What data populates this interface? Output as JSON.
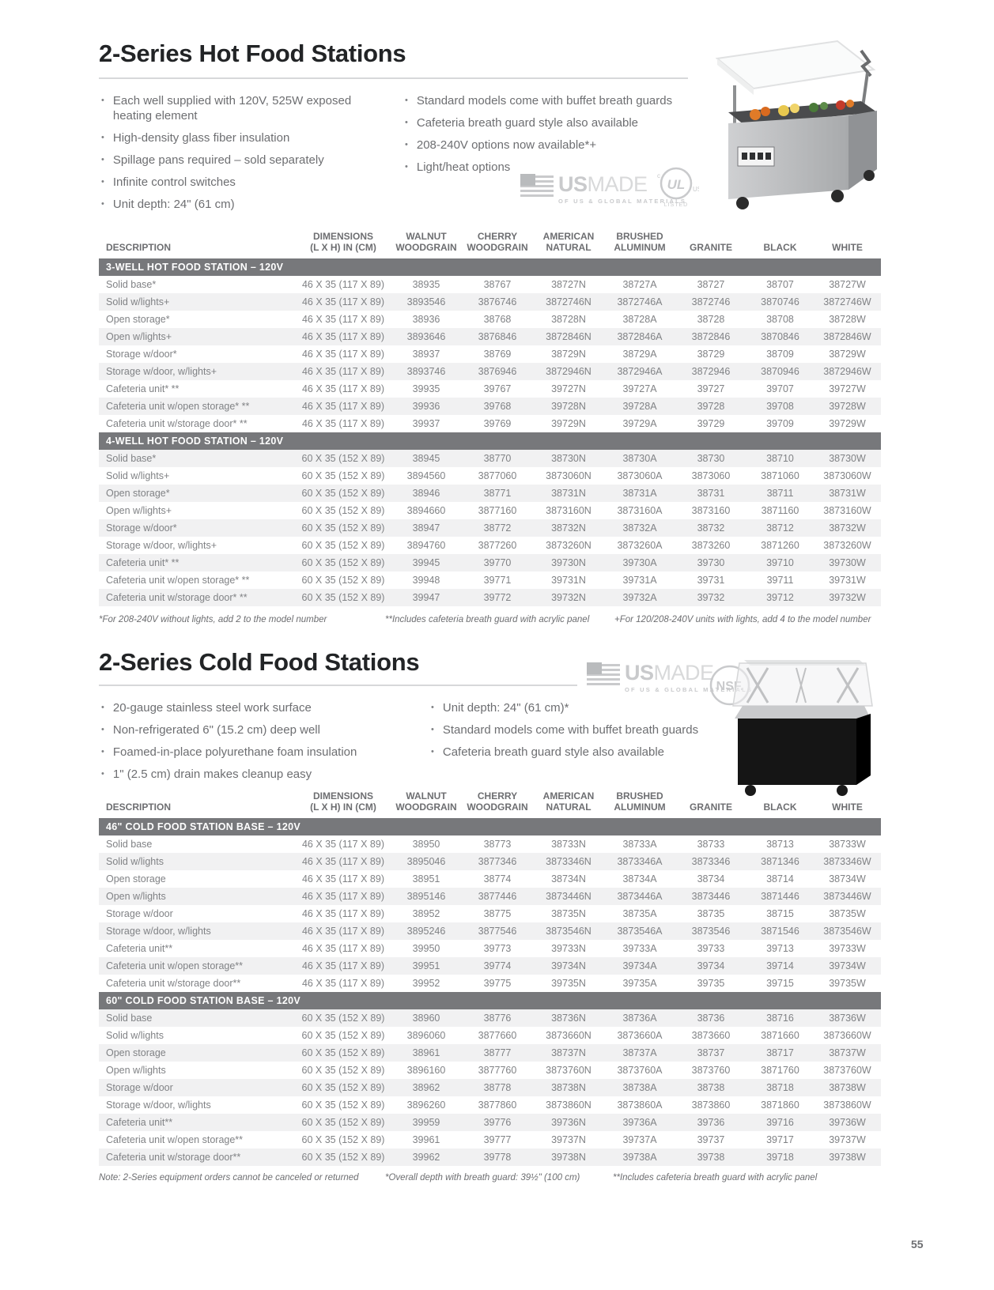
{
  "page_number": "55",
  "bullet_char": "•",
  "badges": {
    "usmade_bold": "US",
    "usmade_light": "MADE",
    "usmade_sub": "OF US & GLOBAL MATERIALS",
    "ul_main": "UL",
    "ul_c": "c",
    "ul_us": "US",
    "ul_listed": "LISTED",
    "nsf": "NSF."
  },
  "hot": {
    "title": "2-Series  Hot Food Stations",
    "bullets_left": [
      "Each well supplied with 120V, 525W exposed heating element",
      "High-density glass fiber insulation",
      "Spillage pans required – sold separately",
      "Infinite control switches",
      "Unit depth: 24\" (61 cm)"
    ],
    "bullets_right": [
      "Standard models come with buffet breath guards",
      "Cafeteria breath guard style also available",
      "208-240V options now available*+",
      "Light/heat options"
    ],
    "table": {
      "headers": [
        [
          "",
          "DESCRIPTION"
        ],
        [
          "DIMENSIONS",
          "(L X H) IN (CM)"
        ],
        [
          "WALNUT",
          "WOODGRAIN"
        ],
        [
          "CHERRY",
          "WOODGRAIN"
        ],
        [
          "AMERICAN",
          "NATURAL"
        ],
        [
          "BRUSHED",
          "ALUMINUM"
        ],
        [
          "",
          "GRANITE"
        ],
        [
          "",
          "BLACK"
        ],
        [
          "",
          "WHITE"
        ]
      ],
      "sections": [
        {
          "label": "3-WELL HOT FOOD STATION – 120V",
          "rows": [
            [
              "Solid base*",
              "46 X 35 (117 X 89)",
              "38935",
              "38767",
              "38727N",
              "38727A",
              "38727",
              "38707",
              "38727W"
            ],
            [
              "Solid w/lights+",
              "46 X 35 (117 X 89)",
              "3893546",
              "3876746",
              "3872746N",
              "3872746A",
              "3872746",
              "3870746",
              "3872746W"
            ],
            [
              "Open storage*",
              "46 X 35 (117 X 89)",
              "38936",
              "38768",
              "38728N",
              "38728A",
              "38728",
              "38708",
              "38728W"
            ],
            [
              "Open w/lights+",
              "46 X 35 (117 X 89)",
              "3893646",
              "3876846",
              "3872846N",
              "3872846A",
              "3872846",
              "3870846",
              "3872846W"
            ],
            [
              "Storage w/door*",
              "46 X 35 (117 X 89)",
              "38937",
              "38769",
              "38729N",
              "38729A",
              "38729",
              "38709",
              "38729W"
            ],
            [
              "Storage w/door, w/lights+",
              "46 X 35 (117 X 89)",
              "3893746",
              "3876946",
              "3872946N",
              "3872946A",
              "3872946",
              "3870946",
              "3872946W"
            ],
            [
              "Cafeteria unit* **",
              "46 X 35 (117 X 89)",
              "39935",
              "39767",
              "39727N",
              "39727A",
              "39727",
              "39707",
              "39727W"
            ],
            [
              "Cafeteria unit w/open storage* **",
              "46 X 35 (117 X 89)",
              "39936",
              "39768",
              "39728N",
              "39728A",
              "39728",
              "39708",
              "39728W"
            ],
            [
              "Cafeteria unit w/storage door* **",
              "46 X 35 (117 X 89)",
              "39937",
              "39769",
              "39729N",
              "39729A",
              "39729",
              "39709",
              "39729W"
            ]
          ]
        },
        {
          "label": "4-WELL HOT FOOD STATION – 120V",
          "rows": [
            [
              "Solid base*",
              "60 X 35 (152 X 89)",
              "38945",
              "38770",
              "38730N",
              "38730A",
              "38730",
              "38710",
              "38730W"
            ],
            [
              "Solid w/lights+",
              "60 X 35 (152 X 89)",
              "3894560",
              "3877060",
              "3873060N",
              "3873060A",
              "3873060",
              "3871060",
              "3873060W"
            ],
            [
              "Open storage*",
              "60 X 35 (152 X 89)",
              "38946",
              "38771",
              "38731N",
              "38731A",
              "38731",
              "38711",
              "38731W"
            ],
            [
              "Open w/lights+",
              "60 X 35 (152 X 89)",
              "3894660",
              "3877160",
              "3873160N",
              "3873160A",
              "3873160",
              "3871160",
              "3873160W"
            ],
            [
              "Storage w/door*",
              "60 X 35 (152 X 89)",
              "38947",
              "38772",
              "38732N",
              "38732A",
              "38732",
              "38712",
              "38732W"
            ],
            [
              "Storage w/door, w/lights+",
              "60 X 35 (152 X 89)",
              "3894760",
              "3877260",
              "3873260N",
              "3873260A",
              "3873260",
              "3871260",
              "3873260W"
            ],
            [
              "Cafeteria unit* **",
              "60 X 35 (152 X 89)",
              "39945",
              "39770",
              "39730N",
              "39730A",
              "39730",
              "39710",
              "39730W"
            ],
            [
              "Cafeteria unit w/open storage* **",
              "60 X 35 (152 X 89)",
              "39948",
              "39771",
              "39731N",
              "39731A",
              "39731",
              "39711",
              "39731W"
            ],
            [
              "Cafeteria unit w/storage door* **",
              "60 X 35 (152 X 89)",
              "39947",
              "39772",
              "39732N",
              "39732A",
              "39732",
              "39712",
              "39732W"
            ]
          ]
        }
      ],
      "footnotes": [
        "*For 208-240V without lights, add 2 to the model number",
        "**Includes cafeteria breath guard with acrylic panel",
        "+For 120/208-240V units with lights, add 4 to the model number"
      ]
    }
  },
  "cold": {
    "title": "2-Series Cold Food Stations",
    "bullets_left": [
      "20-gauge stainless steel work surface",
      "Non-refrigerated 6\" (15.2 cm) deep well",
      "Foamed-in-place polyurethane foam insulation",
      "1\" (2.5 cm) drain makes cleanup easy"
    ],
    "bullets_right": [
      "Unit depth: 24\" (61 cm)*",
      "Standard models come with buffet breath guards",
      "Cafeteria breath guard style also available"
    ],
    "table": {
      "headers": [
        [
          "",
          "DESCRIPTION"
        ],
        [
          "DIMENSIONS",
          "(L X H) IN (CM)"
        ],
        [
          "WALNUT",
          "WOODGRAIN"
        ],
        [
          "CHERRY",
          "WOODGRAIN"
        ],
        [
          "AMERICAN",
          "NATURAL"
        ],
        [
          "BRUSHED",
          "ALUMINUM"
        ],
        [
          "",
          "GRANITE"
        ],
        [
          "",
          "BLACK"
        ],
        [
          "",
          "WHITE"
        ]
      ],
      "sections": [
        {
          "label": "46\" COLD FOOD STATION BASE – 120V",
          "rows": [
            [
              "Solid base",
              "46 X 35 (117 X 89)",
              "38950",
              "38773",
              "38733N",
              "38733A",
              "38733",
              "38713",
              "38733W"
            ],
            [
              "Solid w/lights",
              "46 X 35 (117 X 89)",
              "3895046",
              "3877346",
              "3873346N",
              "3873346A",
              "3873346",
              "3871346",
              "3873346W"
            ],
            [
              "Open storage",
              "46 X 35 (117 X 89)",
              "38951",
              "38774",
              "38734N",
              "38734A",
              "38734",
              "38714",
              "38734W"
            ],
            [
              "Open w/lights",
              "46 X 35 (117 X 89)",
              "3895146",
              "3877446",
              "3873446N",
              "3873446A",
              "3873446",
              "3871446",
              "3873446W"
            ],
            [
              "Storage w/door",
              "46 X 35 (117 X 89)",
              "38952",
              "38775",
              "38735N",
              "38735A",
              "38735",
              "38715",
              "38735W"
            ],
            [
              "Storage w/door, w/lights",
              "46 X 35 (117 X 89)",
              "3895246",
              "3877546",
              "3873546N",
              "3873546A",
              "3873546",
              "3871546",
              "3873546W"
            ],
            [
              "Cafeteria unit**",
              "46 X 35 (117 X 89)",
              "39950",
              "39773",
              "39733N",
              "39733A",
              "39733",
              "39713",
              "39733W"
            ],
            [
              "Cafeteria unit w/open storage**",
              "46 X 35 (117 X 89)",
              "39951",
              "39774",
              "39734N",
              "39734A",
              "39734",
              "39714",
              "39734W"
            ],
            [
              "Cafeteria unit w/storage door**",
              "46 X 35 (117 X 89)",
              "39952",
              "39775",
              "39735N",
              "39735A",
              "39735",
              "39715",
              "39735W"
            ]
          ]
        },
        {
          "label": "60\" COLD FOOD STATION BASE – 120V",
          "rows": [
            [
              "Solid base",
              "60 X 35 (152 X 89)",
              "38960",
              "38776",
              "38736N",
              "38736A",
              "38736",
              "38716",
              "38736W"
            ],
            [
              "Solid w/lights",
              "60 X 35 (152 X 89)",
              "3896060",
              "3877660",
              "3873660N",
              "3873660A",
              "3873660",
              "3871660",
              "3873660W"
            ],
            [
              "Open storage",
              "60 X 35 (152 X 89)",
              "38961",
              "38777",
              "38737N",
              "38737A",
              "38737",
              "38717",
              "38737W"
            ],
            [
              "Open w/lights",
              "60 X 35 (152 X 89)",
              "3896160",
              "3877760",
              "3873760N",
              "3873760A",
              "3873760",
              "3871760",
              "3873760W"
            ],
            [
              "Storage w/door",
              "60 X 35 (152 X 89)",
              "38962",
              "38778",
              "38738N",
              "38738A",
              "38738",
              "38718",
              "38738W"
            ],
            [
              "Storage w/door, w/lights",
              "60 X 35 (152 X 89)",
              "3896260",
              "3877860",
              "3873860N",
              "3873860A",
              "3873860",
              "3871860",
              "3873860W"
            ],
            [
              "Cafeteria unit**",
              "60 X 35 (152 X 89)",
              "39959",
              "39776",
              "39736N",
              "39736A",
              "39736",
              "39716",
              "39736W"
            ],
            [
              "Cafeteria unit w/open storage**",
              "60 X 35 (152 X 89)",
              "39961",
              "39777",
              "39737N",
              "39737A",
              "39737",
              "39717",
              "39737W"
            ],
            [
              "Cafeteria unit w/storage door**",
              "60 X 35 (152 X 89)",
              "39962",
              "39778",
              "39738N",
              "39738A",
              "39738",
              "39718",
              "39738W"
            ]
          ]
        }
      ],
      "footnotes": [
        "Note: 2-Series equipment orders cannot be canceled or returned",
        "*Overall depth with breath guard: 39½\" (100 cm)",
        "**Includes cafeteria breath guard with acrylic panel"
      ]
    }
  }
}
